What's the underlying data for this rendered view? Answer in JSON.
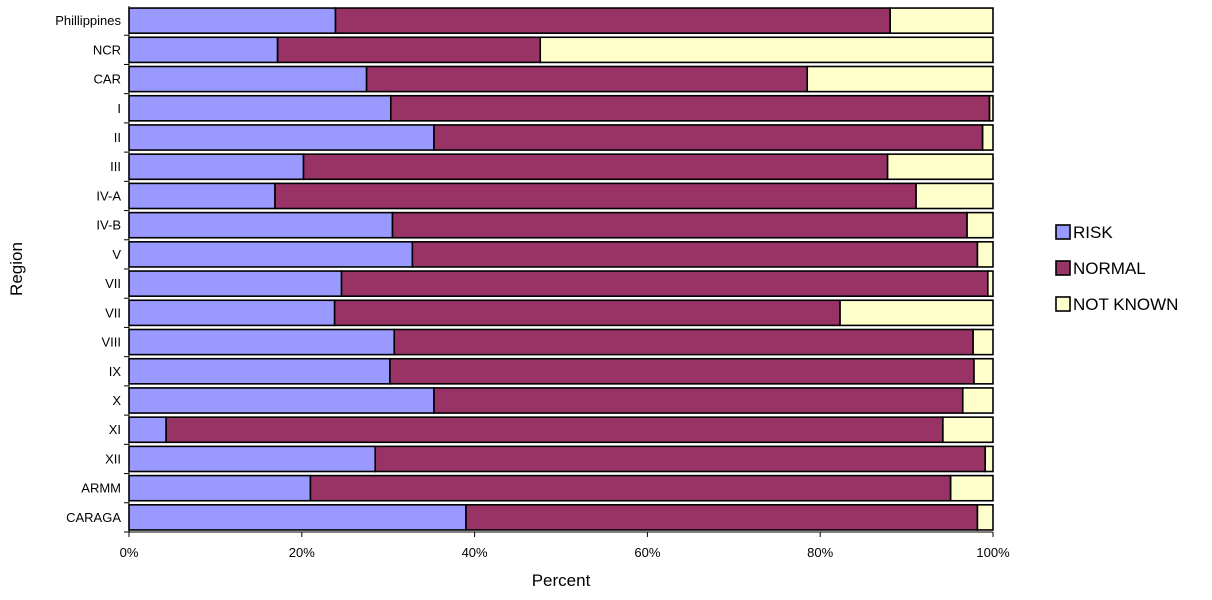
{
  "chart_data": {
    "type": "bar",
    "orientation": "horizontal",
    "stacked": "percent",
    "xlabel": "Percent",
    "ylabel": "Region",
    "xlim": [
      0,
      100
    ],
    "x_ticks": [
      "0%",
      "20%",
      "40%",
      "60%",
      "80%",
      "100%"
    ],
    "grid": false,
    "legend_position": "right",
    "categories": [
      "Phillippines",
      "NCR",
      "CAR",
      "I",
      "II",
      "III",
      "IV-A",
      "IV-B",
      "V",
      "VII",
      "VII",
      "VIII",
      "IX",
      "X",
      "XI",
      "XII",
      "ARMM",
      "CARAGA"
    ],
    "series": [
      {
        "name": "RISK",
        "color": "#9999ff",
        "values": [
          23.9,
          17.2,
          27.5,
          30.3,
          35.3,
          20.2,
          16.9,
          30.5,
          32.8,
          24.6,
          23.8,
          30.7,
          30.2,
          35.3,
          4.3,
          28.5,
          21.0,
          39.0
        ]
      },
      {
        "name": "NORMAL",
        "color": "#993366",
        "values": [
          64.2,
          30.4,
          51.0,
          69.3,
          63.5,
          67.6,
          74.2,
          66.5,
          65.4,
          74.8,
          58.5,
          67.0,
          67.6,
          61.2,
          89.9,
          70.6,
          74.1,
          59.2
        ]
      },
      {
        "name": "NOT KNOWN",
        "color": "#ffffcc",
        "values": [
          11.9,
          52.4,
          21.5,
          0.4,
          1.2,
          12.2,
          8.9,
          3.0,
          1.8,
          0.6,
          17.7,
          2.3,
          2.2,
          3.5,
          5.8,
          0.9,
          4.9,
          1.8
        ]
      }
    ]
  }
}
